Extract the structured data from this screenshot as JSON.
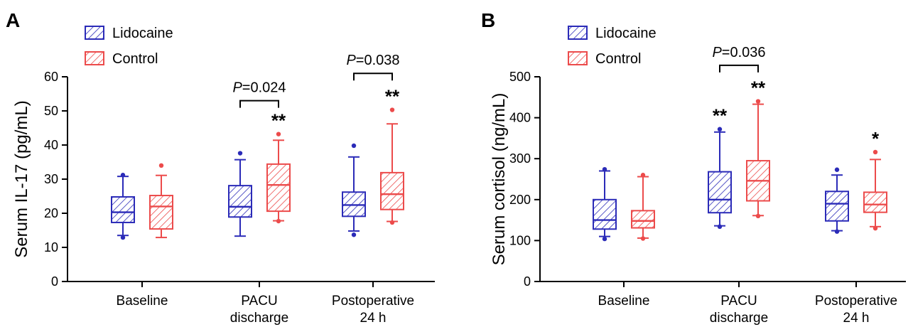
{
  "colors": {
    "lidocaine": "#2b2bb8",
    "control": "#ec4b4b",
    "axis": "#000000"
  },
  "legend": [
    "Lidocaine",
    "Control"
  ],
  "chart_data": [
    {
      "panel_label": "A",
      "type": "boxplot",
      "ylabel": "Serum IL-17 (pg/mL)",
      "ylim": [
        0,
        60
      ],
      "yticks": [
        0,
        10,
        20,
        30,
        40,
        50,
        60
      ],
      "categories": [
        [
          "Baseline"
        ],
        [
          "PACU",
          "discharge"
        ],
        [
          "Postoperative",
          "24 h"
        ]
      ],
      "series": [
        {
          "name": "Lidocaine",
          "boxes": [
            {
              "whisker_low": 13.5,
              "q1": 17.3,
              "median": 20.3,
              "q3": 24.8,
              "whisker_high": 30.8,
              "outliers": [
                12.9,
                31.2
              ]
            },
            {
              "whisker_low": 13.3,
              "q1": 18.9,
              "median": 21.9,
              "q3": 28.1,
              "whisker_high": 35.7,
              "outliers": [
                37.6
              ]
            },
            {
              "whisker_low": 14.8,
              "q1": 19.1,
              "median": 22.4,
              "q3": 26.2,
              "whisker_high": 36.5,
              "outliers": [
                13.7,
                39.8
              ]
            }
          ]
        },
        {
          "name": "Control",
          "boxes": [
            {
              "whisker_low": 12.9,
              "q1": 15.4,
              "median": 22.0,
              "q3": 25.2,
              "whisker_high": 31.1,
              "outliers": [
                34.0
              ]
            },
            {
              "whisker_low": 17.8,
              "q1": 20.6,
              "median": 28.3,
              "q3": 34.4,
              "whisker_high": 41.4,
              "outliers": [
                17.7,
                43.2
              ]
            },
            {
              "whisker_low": 17.6,
              "q1": 21.1,
              "median": 25.6,
              "q3": 31.9,
              "whisker_high": 46.2,
              "outliers": [
                17.3,
                50.3
              ]
            }
          ]
        }
      ],
      "significance": [
        {
          "category": 1,
          "series": 1,
          "label": "**"
        },
        {
          "category": 2,
          "series": 1,
          "label": "**"
        }
      ],
      "comparisons": [
        {
          "category": 1,
          "p_label": "P",
          "p_value": "=0.024",
          "bracket_y": 53
        },
        {
          "category": 2,
          "p_label": "P",
          "p_value": "=0.038",
          "bracket_y": 61
        }
      ]
    },
    {
      "panel_label": "B",
      "type": "boxplot",
      "ylabel": "Serum cortisol (ng/mL)",
      "ylim": [
        0,
        500
      ],
      "yticks": [
        0,
        100,
        200,
        300,
        400,
        500
      ],
      "categories": [
        [
          "Baseline"
        ],
        [
          "PACU",
          "discharge"
        ],
        [
          "Postoperative",
          "24 h"
        ]
      ],
      "series": [
        {
          "name": "Lidocaine",
          "boxes": [
            {
              "whisker_low": 110,
              "q1": 128,
              "median": 150,
              "q3": 200,
              "whisker_high": 270,
              "outliers": [
                104,
                274
              ]
            },
            {
              "whisker_low": 136,
              "q1": 168,
              "median": 200,
              "q3": 268,
              "whisker_high": 365,
              "outliers": [
                134,
                372
              ]
            },
            {
              "whisker_low": 124,
              "q1": 148,
              "median": 190,
              "q3": 220,
              "whisker_high": 260,
              "outliers": [
                122,
                273
              ]
            }
          ]
        },
        {
          "name": "Control",
          "boxes": [
            {
              "whisker_low": 106,
              "q1": 131,
              "median": 148,
              "q3": 173,
              "whisker_high": 256,
              "outliers": [
                105,
                260
              ]
            },
            {
              "whisker_low": 161,
              "q1": 197,
              "median": 246,
              "q3": 295,
              "whisker_high": 433,
              "outliers": [
                160,
                440
              ]
            },
            {
              "whisker_low": 134,
              "q1": 169,
              "median": 188,
              "q3": 218,
              "whisker_high": 298,
              "outliers": [
                130,
                316
              ]
            }
          ]
        }
      ],
      "significance": [
        {
          "category": 1,
          "series": 0,
          "label": "**"
        },
        {
          "category": 1,
          "series": 1,
          "label": "**"
        },
        {
          "category": 2,
          "series": 1,
          "label": "*"
        }
      ],
      "comparisons": [
        {
          "category": 1,
          "p_label": "P",
          "p_value": "=0.036",
          "bracket_y": 528
        }
      ]
    }
  ]
}
